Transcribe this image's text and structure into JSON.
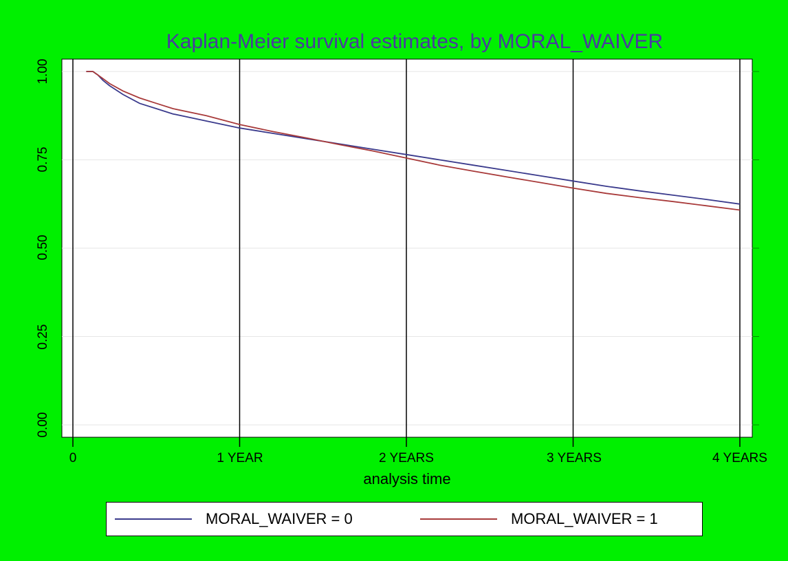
{
  "chart_data": {
    "type": "line",
    "title": "Kaplan-Meier survival estimates, by MORAL_WAIVER",
    "xlabel": "analysis time",
    "ylabel": "",
    "xlim": [
      0,
      4
    ],
    "ylim": [
      0,
      1
    ],
    "x_ticks": [
      {
        "value": 0,
        "label": "0"
      },
      {
        "value": 1,
        "label": "1 YEAR"
      },
      {
        "value": 2,
        "label": "2 YEARS"
      },
      {
        "value": 3,
        "label": "3 YEARS"
      },
      {
        "value": 4,
        "label": "4 YEARS"
      }
    ],
    "y_ticks": [
      {
        "value": 0,
        "label": "0.00"
      },
      {
        "value": 0.25,
        "label": "0.25"
      },
      {
        "value": 0.5,
        "label": "0.50"
      },
      {
        "value": 0.75,
        "label": "0.75"
      },
      {
        "value": 1,
        "label": "1.00"
      }
    ],
    "grid": true,
    "legend_position": "bottom",
    "series": [
      {
        "name": "MORAL_WAIVER = 0",
        "color": "#3a3a8c",
        "x": [
          0.08,
          0.12,
          0.15,
          0.18,
          0.22,
          0.3,
          0.4,
          0.5,
          0.6,
          0.8,
          1.0,
          1.2,
          1.4,
          1.6,
          1.8,
          2.0,
          2.2,
          2.4,
          2.6,
          2.8,
          3.0,
          3.2,
          3.4,
          3.6,
          3.8,
          4.0
        ],
        "y": [
          1.0,
          1.0,
          0.99,
          0.975,
          0.96,
          0.935,
          0.91,
          0.895,
          0.88,
          0.86,
          0.84,
          0.825,
          0.81,
          0.795,
          0.78,
          0.765,
          0.75,
          0.735,
          0.72,
          0.705,
          0.69,
          0.675,
          0.662,
          0.65,
          0.638,
          0.625
        ]
      },
      {
        "name": "MORAL_WAIVER = 1",
        "color": "#a83a3a",
        "x": [
          0.08,
          0.12,
          0.15,
          0.18,
          0.22,
          0.3,
          0.4,
          0.5,
          0.6,
          0.8,
          1.0,
          1.2,
          1.4,
          1.6,
          1.8,
          2.0,
          2.2,
          2.4,
          2.6,
          2.8,
          3.0,
          3.2,
          3.4,
          3.6,
          3.8,
          4.0
        ],
        "y": [
          1.0,
          1.0,
          0.99,
          0.98,
          0.966,
          0.945,
          0.925,
          0.91,
          0.895,
          0.875,
          0.85,
          0.83,
          0.812,
          0.793,
          0.775,
          0.755,
          0.735,
          0.718,
          0.702,
          0.686,
          0.67,
          0.655,
          0.643,
          0.632,
          0.62,
          0.608
        ]
      }
    ]
  }
}
